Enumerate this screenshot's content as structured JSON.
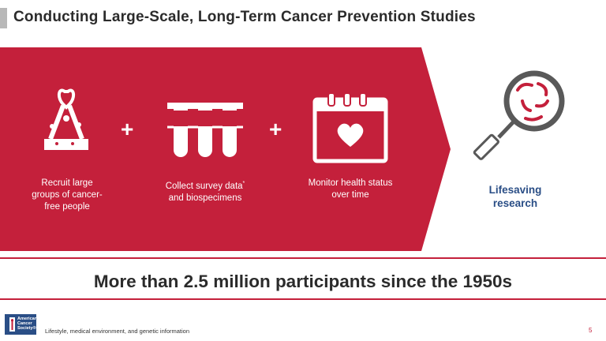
{
  "slide": {
    "title": "Conducting Large-Scale, Long-Term Cancer Prevention Studies",
    "steps": [
      {
        "label_lines": [
          "Recruit large",
          "groups of cancer-",
          "free people"
        ],
        "icon": "ribbon-icon"
      },
      {
        "label_lines": [
          "Collect survey data",
          "and biospecimens"
        ],
        "marker": "*",
        "icon": "test-tubes-icon"
      },
      {
        "label_lines": [
          "Monitor health status",
          "over time"
        ],
        "icon": "calendar-heart-icon"
      }
    ],
    "plus_sign": "+",
    "result_lines": [
      "Lifesaving",
      "research"
    ],
    "result_icon": "magnifying-glass-icon",
    "stat": "More than 2.5 million participants since the 1950s",
    "footnote": "Lifestyle, medical environment, and genetic information",
    "footnote_marker": "*",
    "page_number": "5",
    "logo_lines": [
      "American",
      "Cancer",
      "Society"
    ],
    "logo_mark": "®",
    "colors": {
      "brand_red": "#c4203b",
      "result_blue": "#2a4e86",
      "gray": "#595959"
    }
  }
}
